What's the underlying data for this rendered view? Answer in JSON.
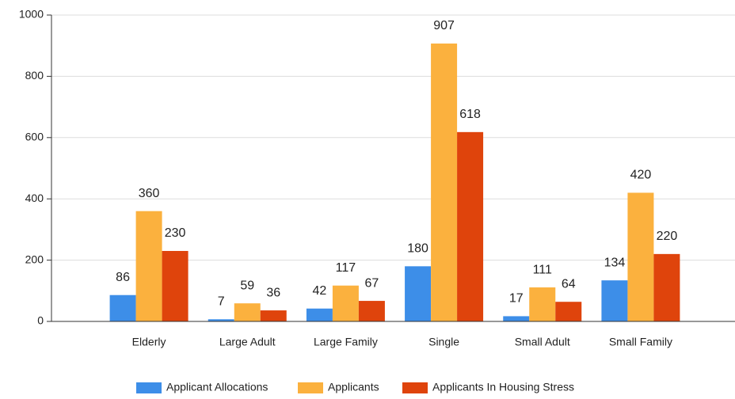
{
  "chart_data": {
    "type": "bar",
    "categories": [
      "Elderly",
      "Large Adult",
      "Large Family",
      "Single",
      "Small Adult",
      "Small Family"
    ],
    "series": [
      {
        "name": "Applicant Allocations",
        "color": "#3d8ee8",
        "values": [
          86,
          7,
          42,
          180,
          17,
          134
        ]
      },
      {
        "name": "Applicants",
        "color": "#fbb13e",
        "values": [
          360,
          59,
          117,
          907,
          111,
          420
        ]
      },
      {
        "name": "Applicants In Housing Stress",
        "color": "#df440c",
        "values": [
          230,
          36,
          67,
          618,
          64,
          220
        ]
      }
    ],
    "ylim": [
      0,
      1000
    ],
    "yticks": [
      0,
      200,
      400,
      600,
      800,
      1000
    ],
    "grid": true,
    "legend": "bottom"
  }
}
